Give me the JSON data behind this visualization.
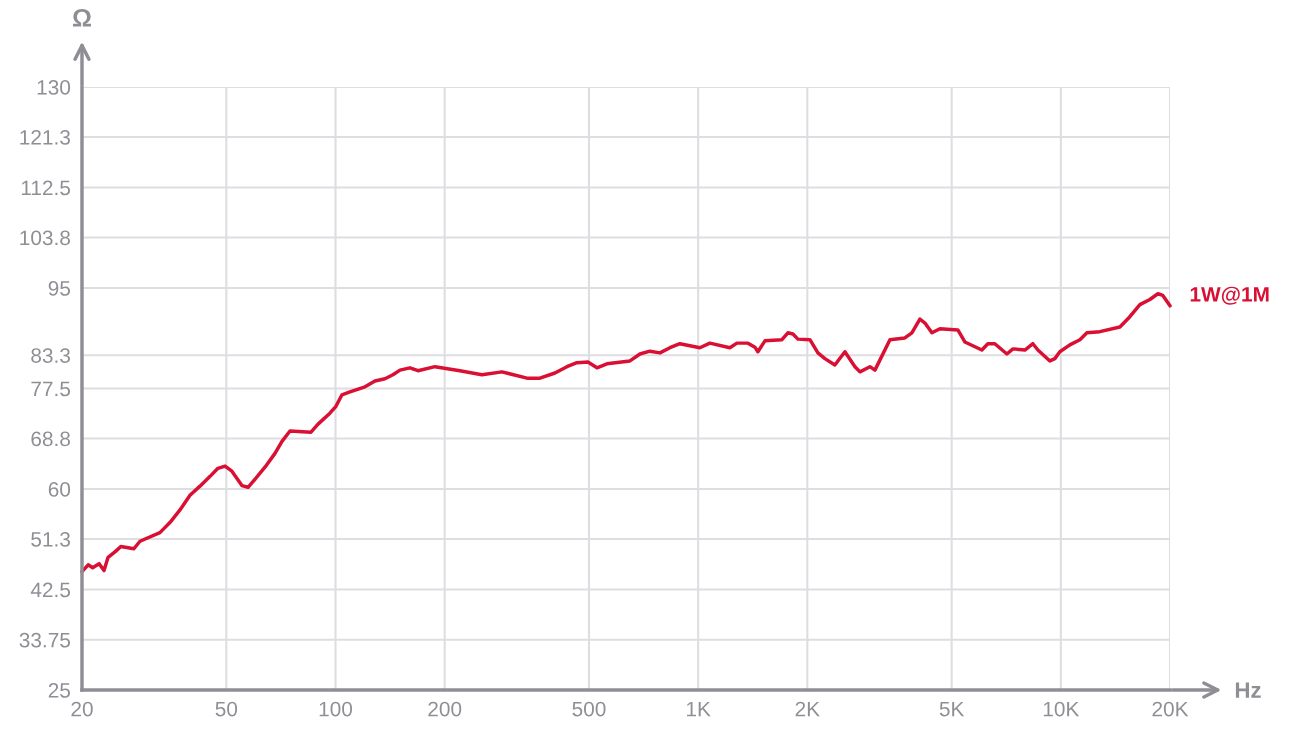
{
  "chart_data": {
    "type": "line",
    "xlabel": "Hz",
    "ylabel": "Ω",
    "log": "x",
    "grid": true,
    "legend": false,
    "marker": "none",
    "line_style": "solid",
    "xlim": [
      20,
      20000
    ],
    "ylim": [
      25,
      130
    ],
    "xticks": [
      20,
      50,
      100,
      200,
      500,
      {
        "value": 1000,
        "label": "1K"
      },
      {
        "value": 2000,
        "label": "2K"
      },
      {
        "value": 5000,
        "label": "5K"
      },
      {
        "value": 10000,
        "label": "10K"
      },
      {
        "value": 20000,
        "label": "20K"
      }
    ],
    "yticks": [
      25,
      33.75,
      42.5,
      51.3,
      60,
      68.8,
      77.5,
      83.3,
      95,
      103.8,
      112.5,
      121.3,
      130
    ],
    "series": [
      {
        "name": "1W@1M",
        "color": "#d90f34",
        "x": [
          20,
          20.8,
          21.4,
          22.3,
          23.0,
          23.6,
          24.7,
          25.6,
          27.8,
          28.9,
          32.8,
          35.0,
          37.3,
          39.7,
          42.3,
          45.1,
          47.4,
          49.6,
          51.8,
          55.2,
          57.4,
          60.0,
          63.9,
          68.1,
          71.2,
          74.9,
          85.6,
          89.5,
          96.5,
          100.3,
          104.2,
          109.6,
          120.6,
          128.5,
          136.9,
          144.0,
          150.6,
          160.4,
          168.8,
          188.1,
          220.3,
          253.4,
          287.6,
          337.3,
          366.3,
          402.8,
          434.6,
          463.1,
          496.6,
          526.0,
          560.4,
          648.5,
          690.9,
          736.2,
          784.4,
          835.9,
          890.6,
          1011,
          1077,
          1223,
          1279,
          1372,
          1434,
          1461,
          1528,
          1702,
          1768,
          1825,
          1884,
          2033,
          2139,
          2236,
          2382,
          2539,
          2706,
          2793,
          2976,
          3072,
          3379,
          3715,
          3884,
          4087,
          4220,
          4411,
          4642,
          5201,
          5437,
          6057,
          6292,
          6578,
          7101,
          7378,
          7961,
          8375,
          8645,
          9329,
          9629,
          9938,
          10590,
          11290,
          11800,
          12810,
          14550,
          15500,
          16520,
          17600,
          18520,
          19110,
          20000
        ],
        "values": [
          45.6,
          46.8,
          46.3,
          47.0,
          45.8,
          48.1,
          49.1,
          50.0,
          49.6,
          50.9,
          52.4,
          54.2,
          56.4,
          58.9,
          60.5,
          62.2,
          63.6,
          64.0,
          63.1,
          60.6,
          60.3,
          61.7,
          63.8,
          66.2,
          68.3,
          70.1,
          69.9,
          71.3,
          73.2,
          74.4,
          76.4,
          76.9,
          77.8,
          78.8,
          79.2,
          79.9,
          80.7,
          81.1,
          80.6,
          81.3,
          80.6,
          79.9,
          80.4,
          79.3,
          79.3,
          80.2,
          81.3,
          82.0,
          82.1,
          81.1,
          81.8,
          82.3,
          83.5,
          84.0,
          83.7,
          84.6,
          85.3,
          84.6,
          85.4,
          84.6,
          85.4,
          85.4,
          84.7,
          83.9,
          85.8,
          86.0,
          87.2,
          87.0,
          86.1,
          86.0,
          83.7,
          82.7,
          81.6,
          83.9,
          81.3,
          80.4,
          81.3,
          80.7,
          86.0,
          86.3,
          87.2,
          89.6,
          88.9,
          87.2,
          87.9,
          87.7,
          85.6,
          84.2,
          85.3,
          85.3,
          83.5,
          84.4,
          84.2,
          85.3,
          84.2,
          82.3,
          82.7,
          83.9,
          85.1,
          86.0,
          87.2,
          87.4,
          88.2,
          90.0,
          92.1,
          93.0,
          94.0,
          93.7,
          91.9
        ]
      }
    ]
  }
}
